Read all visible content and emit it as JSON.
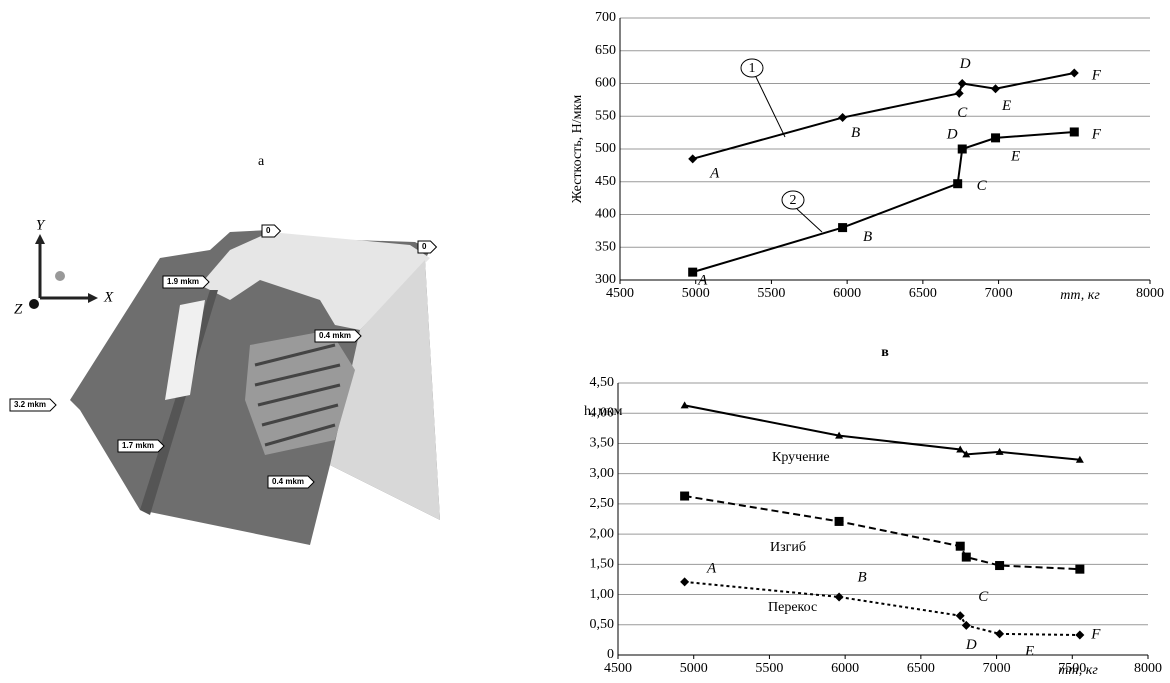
{
  "figure": {
    "label": "а",
    "axes": [
      "Y",
      "X",
      "Z"
    ],
    "callouts": [
      "0",
      "0",
      "1.9 mkm",
      "0.4 mkm",
      "3.2 mkm",
      "1.7 mkm",
      "0.4 mkm"
    ]
  },
  "chart_data": [
    {
      "type": "line",
      "ylabel": "Жесткость, Н/мкм",
      "xlabel": "mт, кг",
      "xlim": [
        4500,
        8000
      ],
      "xticks": [
        4500,
        5000,
        5500,
        6000,
        6500,
        7000,
        8000
      ],
      "ylim": [
        300,
        700
      ],
      "yticks": [
        300,
        350,
        400,
        450,
        500,
        550,
        600,
        650,
        700
      ],
      "grid": true,
      "annotations": [
        "1",
        "2"
      ],
      "series": [
        {
          "color": "#000000",
          "marker": "diamond",
          "line_style": "solid",
          "x": [
            4980,
            5970,
            6740,
            6760,
            6980,
            7500
          ],
          "values": [
            485,
            548,
            585,
            600,
            592,
            616
          ],
          "point_labels": [
            "A",
            "B",
            "C",
            "D",
            "E",
            "F"
          ]
        },
        {
          "color": "#000000",
          "marker": "square",
          "line_style": "solid",
          "x": [
            4980,
            5970,
            6730,
            6760,
            6980,
            7500
          ],
          "values": [
            312,
            380,
            447,
            500,
            517,
            526
          ],
          "point_labels": [
            "A",
            "B",
            "C",
            "D",
            "E",
            "F"
          ]
        }
      ]
    },
    {
      "type": "line",
      "title": "в",
      "ylabel": "h, мкм",
      "xlabel": "mт, кг",
      "xlim": [
        4500,
        8000
      ],
      "xticks": [
        4500,
        5000,
        5500,
        6000,
        6500,
        7000,
        7500,
        8000
      ],
      "ylim": [
        0,
        4.5
      ],
      "yticks": [
        0,
        {
          "value": 0.5,
          "label": "0,50"
        },
        {
          "value": 1,
          "label": "1,00"
        },
        {
          "value": 1.5,
          "label": "1,50"
        },
        {
          "value": 2,
          "label": "2,00"
        },
        {
          "value": 2.5,
          "label": "2,50"
        },
        {
          "value": 3,
          "label": "3,00"
        },
        {
          "value": 3.5,
          "label": "3,50"
        },
        {
          "value": 4,
          "label": "4,00"
        },
        {
          "value": 4.5,
          "label": "4,50"
        }
      ],
      "grid": true,
      "series": [
        {
          "name": "Кручение",
          "color": "#000000",
          "marker": "triangle",
          "line_style": "solid",
          "x": [
            4940,
            5960,
            6760,
            6800,
            7020,
            7550
          ],
          "values": [
            4.13,
            3.63,
            3.4,
            3.32,
            3.36,
            3.23
          ]
        },
        {
          "name": "Изгиб",
          "color": "#000000",
          "marker": "square",
          "line_style": "dashed",
          "x": [
            4940,
            5960,
            6760,
            6800,
            7020,
            7550
          ],
          "values": [
            2.63,
            2.21,
            1.8,
            1.62,
            1.48,
            1.42
          ]
        },
        {
          "name": "Перекос",
          "color": "#000000",
          "marker": "diamond",
          "line_style": "dotted",
          "x": [
            4940,
            5960,
            6760,
            6800,
            7020,
            7550
          ],
          "values": [
            1.21,
            0.96,
            0.65,
            0.49,
            0.35,
            0.33
          ],
          "point_labels": [
            "A",
            "B",
            "C",
            "D",
            "E",
            "F"
          ]
        }
      ]
    }
  ]
}
